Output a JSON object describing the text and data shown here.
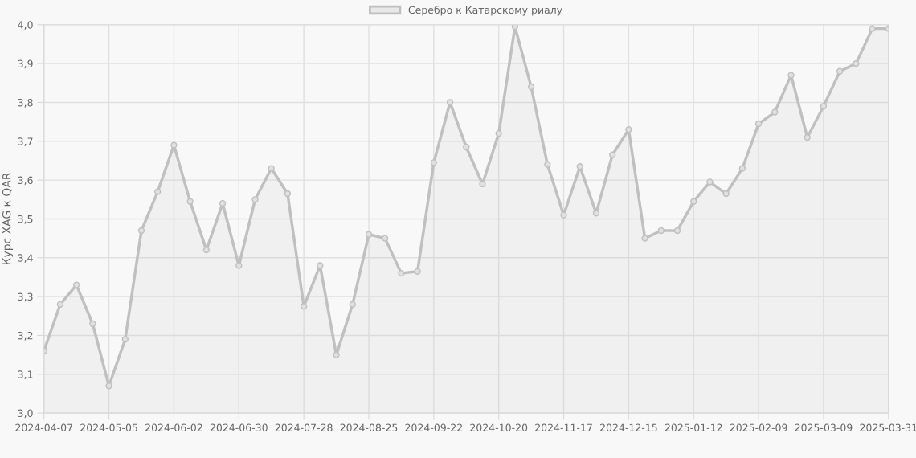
{
  "chart_data": {
    "type": "area",
    "ylabel": "Курс XAG к QAR",
    "categories": [
      "2024-04-07",
      null,
      null,
      null,
      "2024-05-05",
      null,
      null,
      null,
      "2024-06-02",
      null,
      null,
      null,
      "2024-06-30",
      null,
      null,
      null,
      "2024-07-28",
      null,
      null,
      null,
      "2024-08-25",
      null,
      null,
      null,
      "2024-09-22",
      null,
      null,
      null,
      "2024-10-20",
      null,
      null,
      null,
      "2024-11-17",
      null,
      null,
      null,
      "2024-12-15",
      null,
      null,
      null,
      "2025-01-12",
      null,
      null,
      null,
      "2025-02-09",
      null,
      null,
      null,
      "2025-03-09",
      null,
      null,
      null,
      "2025-03-31"
    ],
    "series": [
      {
        "name": "Серебро к Катарскому риалу",
        "color": "#c0c0c0",
        "values": [
          3.16,
          3.28,
          3.33,
          3.23,
          3.07,
          3.19,
          3.47,
          3.57,
          3.69,
          3.545,
          3.42,
          3.54,
          3.38,
          3.55,
          3.63,
          3.565,
          3.275,
          3.38,
          3.15,
          3.28,
          3.46,
          3.45,
          3.36,
          3.365,
          3.645,
          3.8,
          3.685,
          3.59,
          3.72,
          3.995,
          3.84,
          3.64,
          3.51,
          3.635,
          3.515,
          3.665,
          3.73,
          3.45,
          3.47,
          3.47,
          3.545,
          3.595,
          3.565,
          3.63,
          3.745,
          3.775,
          3.87,
          3.71,
          3.79,
          3.88,
          3.9,
          3.99,
          3.99
        ]
      }
    ],
    "ylim": [
      3.0,
      4.0
    ],
    "yticks": [
      {
        "value": 3.0,
        "label": "3,0"
      },
      {
        "value": 3.1,
        "label": "3,1"
      },
      {
        "value": 3.2,
        "label": "3,2"
      },
      {
        "value": 3.3,
        "label": "3,3"
      },
      {
        "value": 3.4,
        "label": "3,4"
      },
      {
        "value": 3.5,
        "label": "3,5"
      },
      {
        "value": 3.6,
        "label": "3,6"
      },
      {
        "value": 3.7,
        "label": "3,7"
      },
      {
        "value": 3.8,
        "label": "3,8"
      },
      {
        "value": 3.9,
        "label": "3,9"
      },
      {
        "value": 4.0,
        "label": "4,0"
      }
    ],
    "grid": true,
    "legend": "top",
    "marker": "circle",
    "line_style": "solid"
  }
}
